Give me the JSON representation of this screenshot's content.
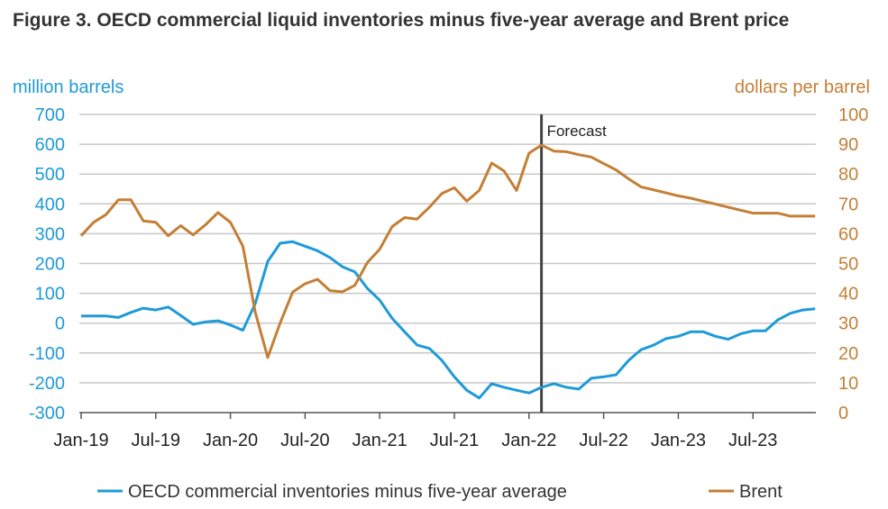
{
  "chart_data": {
    "type": "line",
    "title": "Figure 3. OECD commercial liquid inventories minus five-year average and Brent price",
    "ylabel_left": "million barrels",
    "ylabel_right": "dollars per barrel",
    "ylim_left": [
      -300,
      700
    ],
    "ylim_right": [
      0,
      100
    ],
    "yticks_left": [
      "700",
      "600",
      "500",
      "400",
      "300",
      "200",
      "100",
      "0",
      "-100",
      "-200",
      "-300"
    ],
    "yticks_right": [
      "100",
      "90",
      "80",
      "70",
      "60",
      "50",
      "40",
      "30",
      "20",
      "10",
      "0"
    ],
    "xticks": [
      "Jan-19",
      "Jul-19",
      "Jan-20",
      "Jul-20",
      "Jan-21",
      "Jul-21",
      "Jan-22",
      "Jul-22",
      "Jan-23",
      "Jul-23"
    ],
    "x_start": "Jan-19",
    "x_months": 60,
    "grid": true,
    "legend_placement": "bottom",
    "annotation": {
      "text": "Forecast",
      "month_index": 37
    },
    "series": [
      {
        "name": "OECD commercial inventories minus five-year average",
        "axis": "left",
        "color": "#1e9bd7",
        "values": [
          24,
          24,
          24,
          19,
          36,
          50,
          44,
          54,
          26,
          -4,
          4,
          8,
          -6,
          -24,
          66,
          207,
          268,
          273,
          258,
          243,
          220,
          189,
          172,
          117,
          77,
          16,
          -29,
          -73,
          -85,
          -125,
          -180,
          -225,
          -251,
          -203,
          -215,
          -225,
          -234,
          -215,
          -203,
          -215,
          -221,
          -185,
          -180,
          -173,
          -125,
          -89,
          -74,
          -52,
          -44,
          -29,
          -29,
          -44,
          -54,
          -36,
          -26,
          -26,
          11,
          33,
          44,
          48
        ]
      },
      {
        "name": "Brent",
        "axis": "right",
        "color": "#c47f35",
        "values": [
          59.3,
          63.8,
          66.4,
          71.4,
          71.4,
          64.3,
          63.8,
          59.3,
          62.7,
          59.6,
          63,
          67.1,
          63.8,
          55.8,
          33.6,
          18.5,
          30.1,
          40.4,
          43.2,
          44.7,
          40.9,
          40.5,
          42.7,
          50.3,
          54.8,
          62.4,
          65.4,
          64.9,
          68.9,
          73.5,
          75.4,
          70.9,
          74.5,
          83.7,
          81,
          74.5,
          87,
          89.7,
          87.7,
          87.5,
          86.5,
          85.7,
          83.5,
          81.4,
          78.4,
          75.7,
          74.7,
          73.7,
          72.7,
          71.9,
          70.9,
          69.9,
          68.9,
          67.9,
          66.9,
          66.9,
          66.9,
          65.9,
          65.9,
          65.9
        ]
      }
    ]
  }
}
